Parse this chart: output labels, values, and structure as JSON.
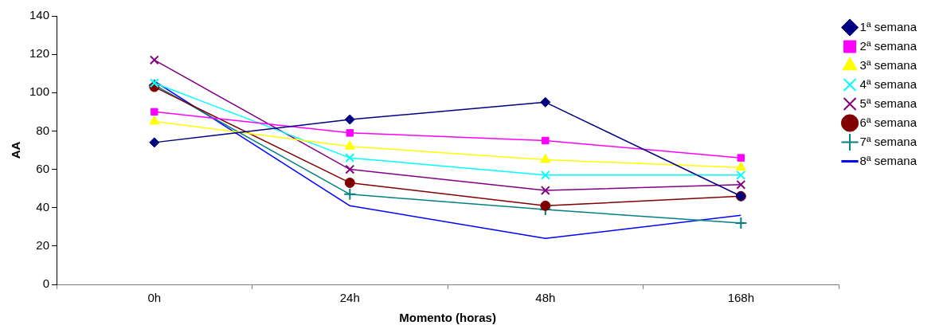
{
  "chart_data": {
    "type": "line",
    "xlabel": "Momento (horas)",
    "ylabel": "AA",
    "categories": [
      "0h",
      "24h",
      "48h",
      "168h"
    ],
    "ylim": [
      0,
      140
    ],
    "yticks": [
      0,
      20,
      40,
      60,
      80,
      100,
      120,
      140
    ],
    "grid": false,
    "legend": "right",
    "series": [
      {
        "name": "1ª semana",
        "color": "#000080",
        "marker": "diamond",
        "values": [
          74,
          86,
          95,
          46
        ]
      },
      {
        "name": "2ª semana",
        "color": "#ff00ff",
        "marker": "square",
        "values": [
          90,
          79,
          75,
          66
        ]
      },
      {
        "name": "3ª semana",
        "color": "#ffff00",
        "marker": "triangle",
        "values": [
          85,
          72,
          65,
          61
        ]
      },
      {
        "name": "4ª semana",
        "color": "#00ffff",
        "marker": "cross",
        "values": [
          105,
          66,
          57,
          57
        ]
      },
      {
        "name": "5ª semana",
        "color": "#800080",
        "marker": "cross",
        "values": [
          117,
          60,
          49,
          52
        ]
      },
      {
        "name": "6ª semana",
        "color": "#800000",
        "marker": "circle",
        "values": [
          103,
          53,
          41,
          46
        ]
      },
      {
        "name": "7ª semana",
        "color": "#008080",
        "marker": "plus",
        "values": [
          104,
          47,
          39,
          32
        ]
      },
      {
        "name": "8ª semana",
        "color": "#0000ff",
        "marker": "none",
        "values": [
          106,
          41,
          24,
          36
        ]
      }
    ]
  }
}
